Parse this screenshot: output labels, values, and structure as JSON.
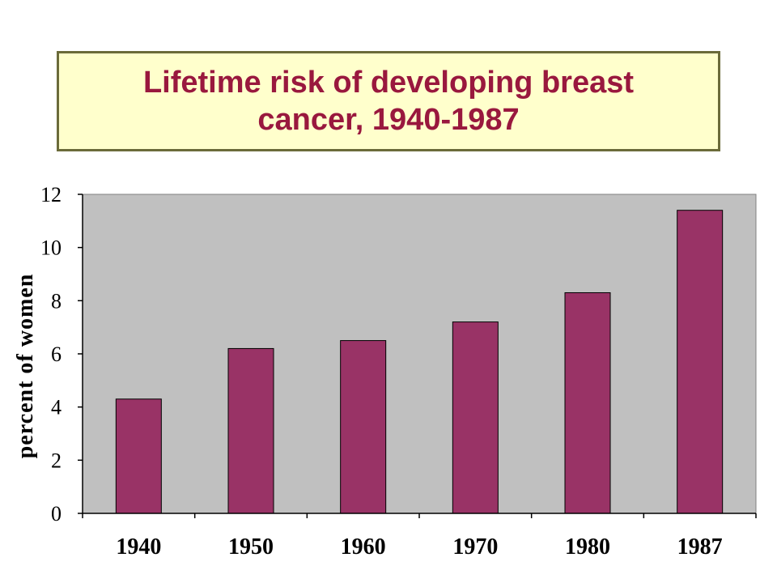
{
  "chart_data": {
    "type": "bar",
    "title": "Lifetime risk of developing breast cancer, 1940-1987",
    "xlabel": "",
    "ylabel": "percent of women",
    "categories": [
      "1940",
      "1950",
      "1960",
      "1970",
      "1980",
      "1987"
    ],
    "values": [
      4.3,
      6.2,
      6.5,
      7.2,
      8.3,
      11.4
    ],
    "ylim": [
      0,
      12
    ],
    "yticks": [
      "0",
      "2",
      "4",
      "6",
      "8",
      "10",
      "12"
    ],
    "grid": false,
    "legend": "none",
    "colors": {
      "bar": "#993366",
      "plot_background": "#c0c0c0",
      "title_background": "#ffffcc",
      "title_text": "#99183e"
    }
  }
}
